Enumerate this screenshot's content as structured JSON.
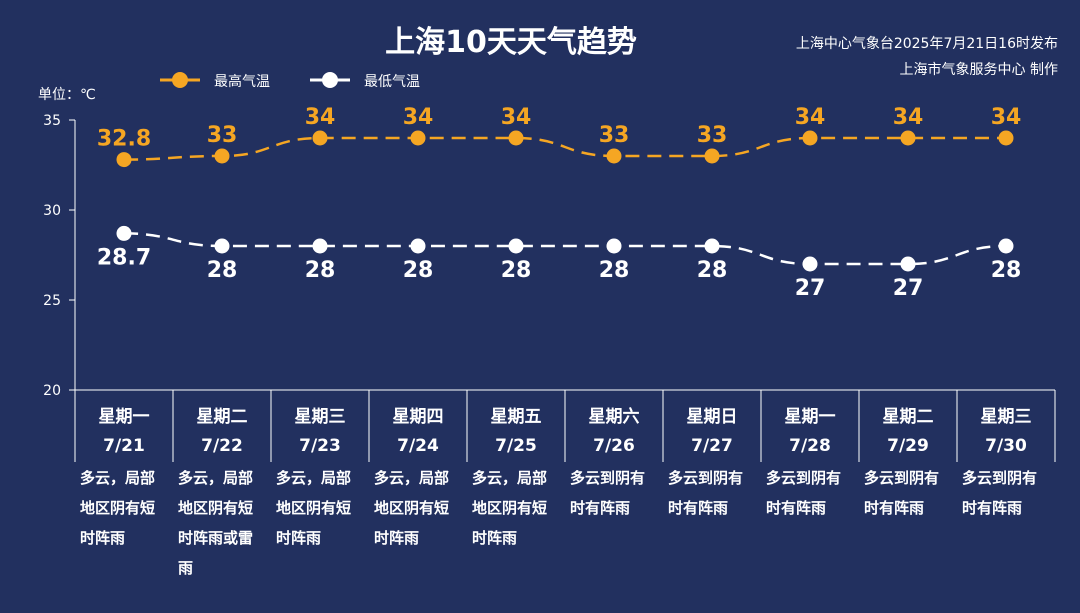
{
  "colors": {
    "background": "#22305f",
    "high": "#f5a623",
    "low": "#ffffff"
  },
  "chart_data": {
    "type": "line",
    "title": "上海10天天气趋势",
    "source_line1": "上海中心气象台2025年7月21日16时发布",
    "source_line2": "上海市气象服务中心 制作",
    "unit": "单位：℃",
    "ylim": [
      20,
      35
    ],
    "yticks": [
      20,
      25,
      30,
      35
    ],
    "grid": false,
    "legend_position": "top-left",
    "categories": [
      "7/21",
      "7/22",
      "7/23",
      "7/24",
      "7/25",
      "7/26",
      "7/27",
      "7/28",
      "7/29",
      "7/30"
    ],
    "weekdays": [
      "星期一",
      "星期二",
      "星期三",
      "星期四",
      "星期五",
      "星期六",
      "星期日",
      "星期一",
      "星期二",
      "星期三"
    ],
    "series": [
      {
        "name": "最高气温",
        "color": "#f5a623",
        "values": [
          32.8,
          33,
          34,
          34,
          34,
          33,
          33,
          34,
          34,
          34
        ]
      },
      {
        "name": "最低气温",
        "color": "#ffffff",
        "values": [
          28.7,
          28,
          28,
          28,
          28,
          28,
          28,
          27,
          27,
          28
        ]
      }
    ],
    "weather": [
      [
        "多云，局部",
        "地区阴有短",
        "时阵雨"
      ],
      [
        "多云，局部",
        "地区阴有短",
        "时阵雨或雷",
        "雨"
      ],
      [
        "多云，局部",
        "地区阴有短",
        "时阵雨"
      ],
      [
        "多云，局部",
        "地区阴有短",
        "时阵雨"
      ],
      [
        "多云，局部",
        "地区阴有短",
        "时阵雨"
      ],
      [
        "多云到阴有",
        "时有阵雨"
      ],
      [
        "多云到阴有",
        "时有阵雨"
      ],
      [
        "多云到阴有",
        "时有阵雨"
      ],
      [
        "多云到阴有",
        "时有阵雨"
      ],
      [
        "多云到阴有",
        "时有阵雨"
      ]
    ]
  }
}
